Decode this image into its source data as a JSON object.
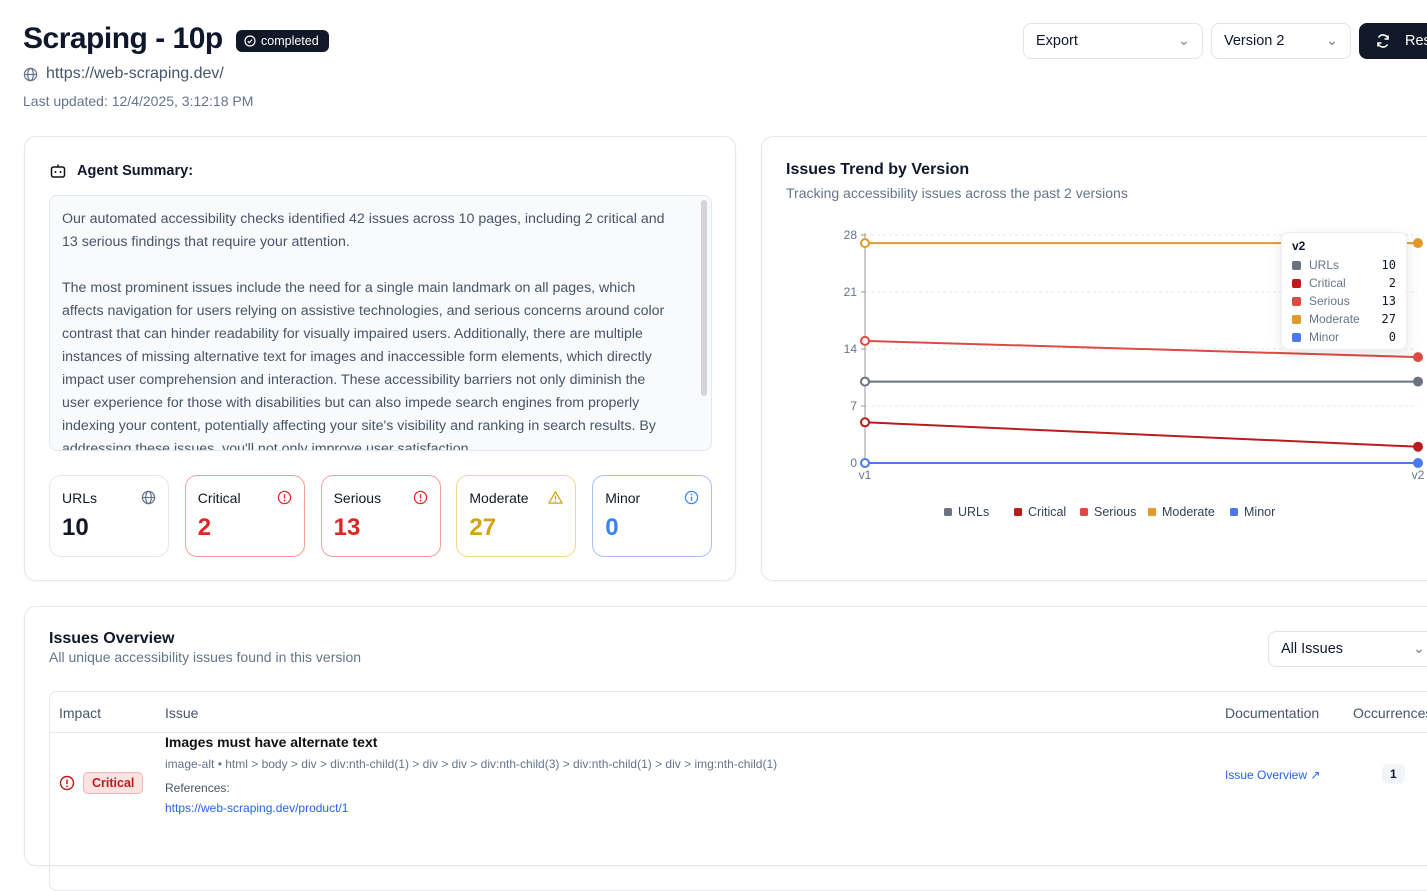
{
  "header": {
    "title": "Scraping - 10p",
    "status": "completed",
    "url": "https://web-scraping.dev/",
    "last_updated": "Last updated: 12/4/2025, 3:12:18 PM",
    "export_label": "Export",
    "version_label": "Version 2",
    "rescan_label": "Rescan"
  },
  "summary": {
    "title": "Agent Summary:",
    "paragraphs": [
      "Our automated accessibility checks identified 42 issues across 10 pages, including 2 critical and 13 serious findings that require your attention.",
      "The most prominent issues include the need for a single main landmark on all pages, which affects navigation for users relying on assistive technologies, and serious concerns around color contrast that can hinder readability for visually impaired users. Additionally, there are multiple instances of missing alternative text for images and inaccessible form elements, which directly impact user comprehension and interaction. These accessibility barriers not only diminish the user experience for those with disabilities but can also impede search engines from properly indexing your content, potentially affecting your site's visibility and ranking in search results. By addressing these issues, you'll not only improve user satisfaction"
    ]
  },
  "stats": [
    {
      "label": "URLs",
      "value": "10",
      "color": "#111827",
      "border": "#e2e8f0"
    },
    {
      "label": "Critical",
      "value": "2",
      "color": "#dc2626",
      "border": "#f0a09a"
    },
    {
      "label": "Serious",
      "value": "13",
      "color": "#dc2626",
      "border": "#f0a09a"
    },
    {
      "label": "Moderate",
      "value": "27",
      "color": "#d4a20c",
      "border": "#f5d88a"
    },
    {
      "label": "Minor",
      "value": "0",
      "color": "#3b82f6",
      "border": "#a8c0f8"
    }
  ],
  "trend": {
    "title": "Issues Trend by Version",
    "subtitle": "Tracking accessibility issues across the past 2 versions"
  },
  "chart_data": {
    "type": "line",
    "x": [
      "v1",
      "v2"
    ],
    "ylim": [
      0,
      28
    ],
    "yticks": [
      "0",
      "7",
      "14",
      "21",
      "28"
    ],
    "series": [
      {
        "name": "URLs",
        "color": "#6b7280",
        "values": [
          10,
          10
        ]
      },
      {
        "name": "Critical",
        "color": "#b91c1c",
        "values": [
          5,
          2
        ]
      },
      {
        "name": "Serious",
        "color": "#dc4b43",
        "values": [
          15,
          13
        ]
      },
      {
        "name": "Moderate",
        "color": "#e09a2a",
        "values": [
          27,
          27
        ]
      },
      {
        "name": "Minor",
        "color": "#4a78f0",
        "values": [
          0,
          0
        ]
      }
    ],
    "tooltip": {
      "title": "v2",
      "rows": [
        {
          "name": "URLs",
          "value": "10"
        },
        {
          "name": "Critical",
          "value": "2"
        },
        {
          "name": "Serious",
          "value": "13"
        },
        {
          "name": "Moderate",
          "value": "27"
        },
        {
          "name": "Minor",
          "value": "0"
        }
      ]
    }
  },
  "issues": {
    "title": "Issues Overview",
    "subtitle": "All unique accessibility issues found in this version",
    "filter": "All Issues",
    "columns": [
      "Impact",
      "Issue",
      "Documentation",
      "Occurrences"
    ],
    "rows": [
      {
        "impact": "Critical",
        "title": "Images must have alternate text",
        "selector": "image-alt • html > body > div > div:nth-child(1) > div > div > div:nth-child(3) > div:nth-child(1) > div > img:nth-child(1)",
        "refs_label": "References:",
        "ref": "https://web-scraping.dev/product/1",
        "doc": "Issue Overview",
        "count": "1"
      }
    ]
  }
}
